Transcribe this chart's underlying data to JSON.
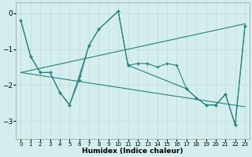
{
  "xlabel": "Humidex (Indice chaleur)",
  "bg_color": "#d4eeee",
  "line_color": "#2d7d7d",
  "grid_color": "#c0dede",
  "xlim": [
    -0.5,
    23.5
  ],
  "ylim": [
    -3.5,
    0.3
  ],
  "yticks": [
    0,
    -1,
    -2,
    -3
  ],
  "xticks": [
    0,
    1,
    2,
    3,
    4,
    5,
    6,
    7,
    8,
    9,
    10,
    11,
    12,
    13,
    14,
    15,
    16,
    17,
    18,
    19,
    20,
    21,
    22,
    23
  ],
  "line1_x": [
    0,
    1,
    2,
    3,
    4,
    5,
    6,
    7,
    8,
    10,
    11,
    17,
    18,
    19,
    20,
    21,
    22,
    23
  ],
  "line1_y": [
    -0.2,
    -1.2,
    -1.65,
    -1.65,
    -2.2,
    -2.55,
    -1.85,
    -0.9,
    -0.45,
    0.05,
    -1.45,
    -2.1,
    -2.35,
    -2.55,
    -2.55,
    -2.25,
    -3.1,
    -0.35
  ],
  "line2_x": [
    0,
    1,
    2,
    3,
    4,
    5,
    6,
    7,
    8,
    10,
    11,
    12,
    13,
    14,
    15,
    16,
    17,
    18,
    19,
    20,
    21,
    22,
    23
  ],
  "line2_y": [
    -0.2,
    -1.2,
    -1.65,
    -1.65,
    -2.2,
    -2.55,
    -1.75,
    -0.9,
    -0.45,
    0.05,
    -1.45,
    -1.4,
    -1.4,
    -1.5,
    -1.4,
    -1.45,
    -2.1,
    -2.35,
    -2.55,
    -2.55,
    -2.25,
    -3.1,
    -0.35
  ],
  "line3_x": [
    0,
    23
  ],
  "line3_y": [
    -1.65,
    -0.3
  ],
  "line4_x": [
    0,
    23
  ],
  "line4_y": [
    -1.65,
    -2.6
  ]
}
